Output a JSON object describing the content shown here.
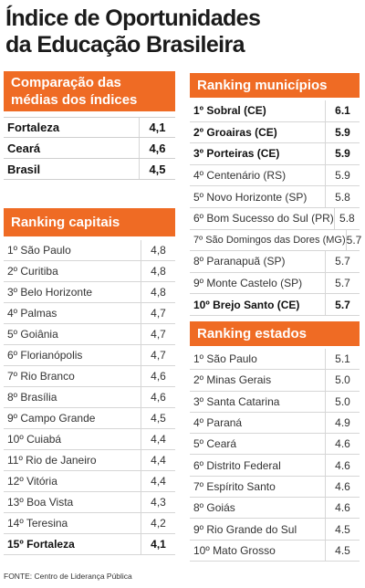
{
  "title": {
    "line1": "Índice de Oportunidades",
    "line2": "da Educação Brasileira"
  },
  "comparacao": {
    "header_line1": "Comparação das",
    "header_line2": "médias dos índices",
    "rows": [
      {
        "name": "Fortaleza",
        "value": "4,1"
      },
      {
        "name": "Ceará",
        "value": "4,6"
      },
      {
        "name": "Brasil",
        "value": "4,5"
      }
    ]
  },
  "capitais": {
    "header": "Ranking capitais",
    "rows": [
      {
        "name": "1º São Paulo",
        "value": "4,8"
      },
      {
        "name": "2º Curitiba",
        "value": "4,8"
      },
      {
        "name": "3º Belo Horizonte",
        "value": "4,8"
      },
      {
        "name": "4º Palmas",
        "value": "4,7"
      },
      {
        "name": "5º Goiânia",
        "value": "4,7"
      },
      {
        "name": "6º Florianópolis",
        "value": "4,7"
      },
      {
        "name": "7º Rio Branco",
        "value": "4,6"
      },
      {
        "name": "8º Brasília",
        "value": "4,6"
      },
      {
        "name": "9º Campo Grande",
        "value": "4,5"
      },
      {
        "name": "10º Cuiabá",
        "value": "4,4"
      },
      {
        "name": "11º Rio de Janeiro",
        "value": "4,4"
      },
      {
        "name": "12º Vitória",
        "value": "4,4"
      },
      {
        "name": "13º Boa Vista",
        "value": "4,3"
      },
      {
        "name": "14º Teresina",
        "value": "4,2"
      },
      {
        "name": "15º Fortaleza",
        "value": "4,1"
      }
    ]
  },
  "municipios": {
    "header": "Ranking municípios",
    "rows": [
      {
        "name": "1º Sobral (CE)",
        "value": "6.1"
      },
      {
        "name": "2º Groairas (CE)",
        "value": "5.9"
      },
      {
        "name": "3º Porteiras (CE)",
        "value": "5.9"
      },
      {
        "name": "4º Centenário (RS)",
        "value": "5.9"
      },
      {
        "name": "5º Novo Horizonte (SP)",
        "value": "5.8"
      },
      {
        "name": "6º Bom Sucesso do Sul (PR)",
        "value": "5.8"
      },
      {
        "name": "7º São Domingos das Dores (MG)",
        "value": "5.7"
      },
      {
        "name": "8º Paranapuã (SP)",
        "value": "5.7"
      },
      {
        "name": "9º Monte Castelo (SP)",
        "value": "5.7"
      },
      {
        "name": "10º Brejo Santo (CE)",
        "value": "5.7"
      }
    ]
  },
  "estados": {
    "header": "Ranking estados",
    "rows": [
      {
        "name": "1º São Paulo",
        "value": "5.1"
      },
      {
        "name": "2º Minas Gerais",
        "value": "5.0"
      },
      {
        "name": "3º Santa Catarina",
        "value": "5.0"
      },
      {
        "name": "4º Paraná",
        "value": "4.9"
      },
      {
        "name": "5º Ceará",
        "value": "4.6"
      },
      {
        "name": "6º Distrito Federal",
        "value": "4.6"
      },
      {
        "name": "7º Espírito Santo",
        "value": "4.6"
      },
      {
        "name": "8º Goiás",
        "value": "4.6"
      },
      {
        "name": "9º Rio Grande do Sul",
        "value": "4.5"
      },
      {
        "name": "10º Mato Grosso",
        "value": "4.5"
      }
    ]
  },
  "source": "FONTE: Centro de Liderança Pública",
  "colors": {
    "header_bg": "#ef6b24",
    "header_text": "#ffffff"
  }
}
